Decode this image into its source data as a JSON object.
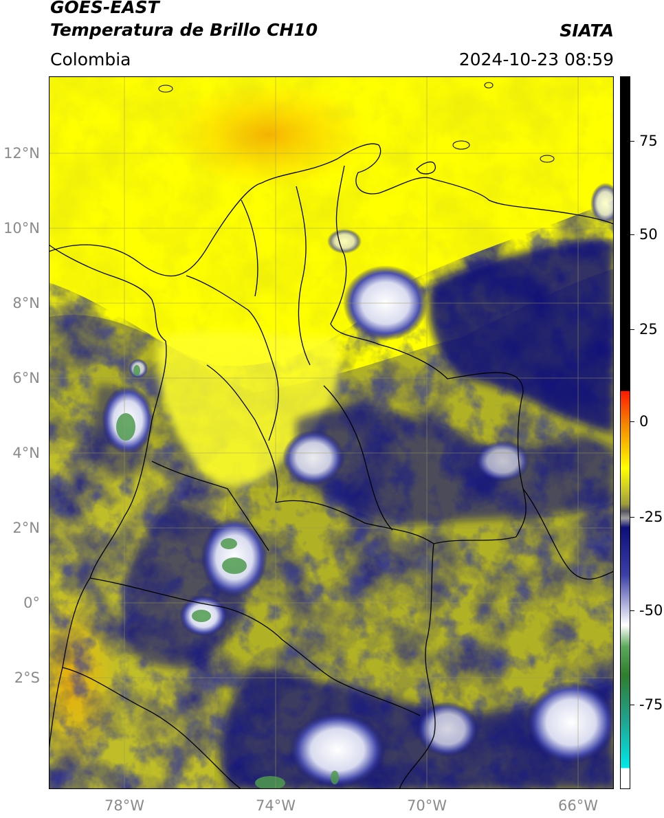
{
  "header": {
    "satellite": "GOES-EAST",
    "product": "Temperatura de Brillo CH10",
    "region": "Colombia",
    "agency": "SIATA",
    "timestamp": "2024-10-23 08:59"
  },
  "map": {
    "lat_labels": [
      "12°N",
      "10°N",
      "8°N",
      "6°N",
      "4°N",
      "2°N",
      "0°",
      "2°S"
    ],
    "lon_labels": [
      "78°W",
      "74°W",
      "70°W",
      "66°W"
    ],
    "lon_range": [
      -80,
      -65
    ],
    "lat_range": [
      -4.6,
      14.3
    ],
    "grid": true
  },
  "colorbar": {
    "ticks": [
      "75",
      "50",
      "25",
      "0",
      "-25",
      "-50",
      "-75"
    ],
    "range": [
      -95,
      90
    ],
    "colors": {
      "warm": "#000000",
      "red": "#ff2a00",
      "orange": "#f7a400",
      "yellow": "#ffff00",
      "olive": "#a9a829",
      "navy": "#0d0e78",
      "white": "#ffffff",
      "green": "#2f8a2f",
      "cyan": "#00e0e0"
    }
  }
}
